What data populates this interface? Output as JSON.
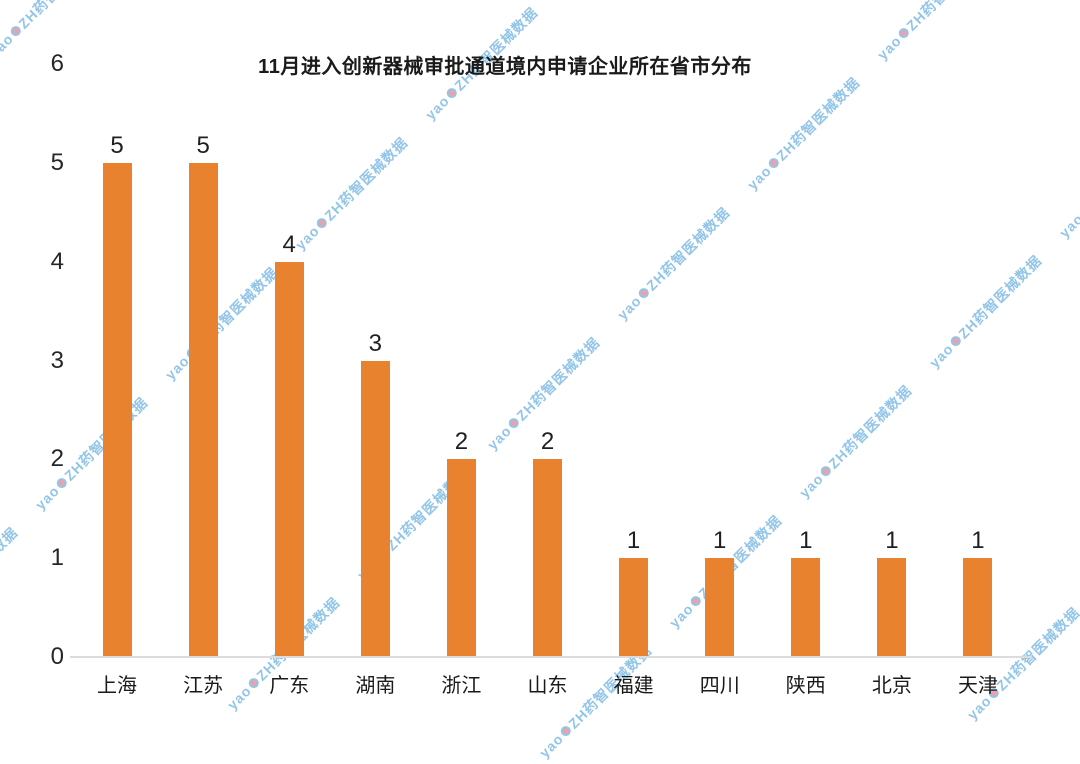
{
  "title": "11月进入创新器械审批通道境内申请企业所在省市分布",
  "watermark": {
    "prefix": "yao",
    "suffix": "ZH药智医械数据",
    "text_color": "#3a96d7",
    "dot_color": "#e25565"
  },
  "colors": {
    "bar": "#E8822E",
    "axis_line": "#dcdcdc",
    "label_text": "#1f1f1f"
  },
  "chart_data": {
    "type": "bar",
    "title": "11月进入创新器械审批通道境内申请企业所在省市分布",
    "categories": [
      "上海",
      "江苏",
      "广东",
      "湖南",
      "浙江",
      "山东",
      "福建",
      "四川",
      "陕西",
      "北京",
      "天津"
    ],
    "values": [
      5,
      5,
      4,
      3,
      2,
      2,
      1,
      1,
      1,
      1,
      1
    ],
    "value_labels": [
      "5",
      "5",
      "4",
      "3",
      "2",
      "2",
      "1",
      "1",
      "1",
      "1",
      "1"
    ],
    "xlabel": "",
    "ylabel": "",
    "ylim": [
      0,
      6
    ],
    "yticks": [
      0,
      1,
      2,
      3,
      4,
      5,
      6
    ],
    "bar_color": "#E8822E",
    "grid": false,
    "legend": false
  }
}
